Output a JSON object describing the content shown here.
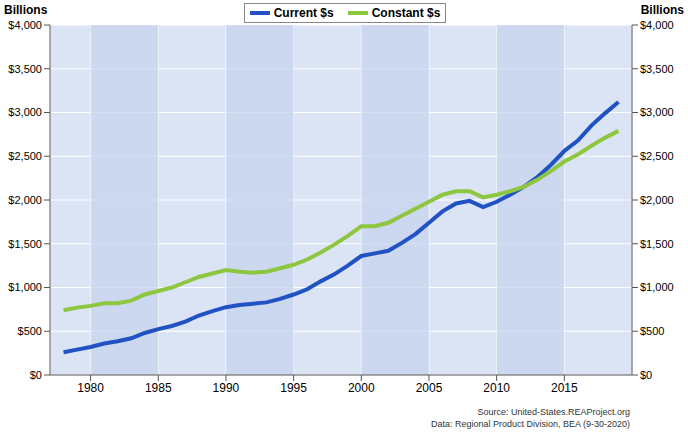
{
  "chart_data": {
    "type": "line",
    "y_label": "Billions",
    "y2_label": "Billions",
    "annotations": [
      "Source: United-States.REAProject.org",
      "Data: Regional Product Division, BEA (9-30-2020)"
    ],
    "x": [
      1978,
      1979,
      1980,
      1981,
      1982,
      1983,
      1984,
      1985,
      1986,
      1987,
      1988,
      1989,
      1990,
      1991,
      1992,
      1993,
      1994,
      1995,
      1996,
      1997,
      1998,
      1999,
      2000,
      2001,
      2002,
      2003,
      2004,
      2005,
      2006,
      2007,
      2008,
      2009,
      2010,
      2011,
      2012,
      2013,
      2014,
      2015,
      2016,
      2017,
      2018,
      2019
    ],
    "series": [
      {
        "name": "Current $s",
        "color": "#2152c4",
        "values": [
          260,
          290,
          320,
          360,
          385,
          420,
          480,
          525,
          560,
          610,
          680,
          730,
          775,
          800,
          815,
          830,
          870,
          920,
          980,
          1070,
          1150,
          1250,
          1360,
          1390,
          1420,
          1510,
          1610,
          1740,
          1870,
          1960,
          1990,
          1920,
          1980,
          2060,
          2150,
          2260,
          2400,
          2560,
          2680,
          2850,
          2990,
          3120
        ]
      },
      {
        "name": "Constant $s",
        "color": "#8dc63f",
        "values": [
          740,
          770,
          790,
          820,
          820,
          850,
          920,
          960,
          1000,
          1060,
          1120,
          1160,
          1200,
          1180,
          1170,
          1180,
          1220,
          1260,
          1320,
          1400,
          1490,
          1590,
          1700,
          1700,
          1740,
          1820,
          1900,
          1980,
          2060,
          2100,
          2100,
          2030,
          2060,
          2100,
          2150,
          2230,
          2330,
          2440,
          2520,
          2620,
          2710,
          2790
        ]
      }
    ],
    "xlim": [
      1977,
      2020
    ],
    "xticks": [
      1980,
      1985,
      1990,
      1995,
      2000,
      2005,
      2010,
      2015
    ],
    "ylim": [
      0,
      4000
    ],
    "yticks": [
      {
        "value": 0,
        "label": "$0"
      },
      {
        "value": 500,
        "label": "$500"
      },
      {
        "value": 1000,
        "label": "$1,000"
      },
      {
        "value": 1500,
        "label": "$1,500"
      },
      {
        "value": 2000,
        "label": "$2,000"
      },
      {
        "value": 2500,
        "label": "$2,500"
      },
      {
        "value": 3000,
        "label": "$3,000"
      },
      {
        "value": 3500,
        "label": "$3,500"
      },
      {
        "value": 4000,
        "label": "$4,000"
      }
    ],
    "y2lim": [
      0,
      4000
    ],
    "y2ticks": [
      {
        "value": 0,
        "label": "$0"
      },
      {
        "value": 500,
        "label": "$500"
      },
      {
        "value": 1000,
        "label": "$1,000"
      },
      {
        "value": 1500,
        "label": "$1,500"
      },
      {
        "value": 2000,
        "label": "$2,000"
      },
      {
        "value": 2500,
        "label": "$2,500"
      },
      {
        "value": 3000,
        "label": "$3,000"
      },
      {
        "value": 3500,
        "label": "$3,500"
      },
      {
        "value": 4000,
        "label": "$4,000"
      }
    ],
    "grid": true,
    "legend": "top"
  }
}
